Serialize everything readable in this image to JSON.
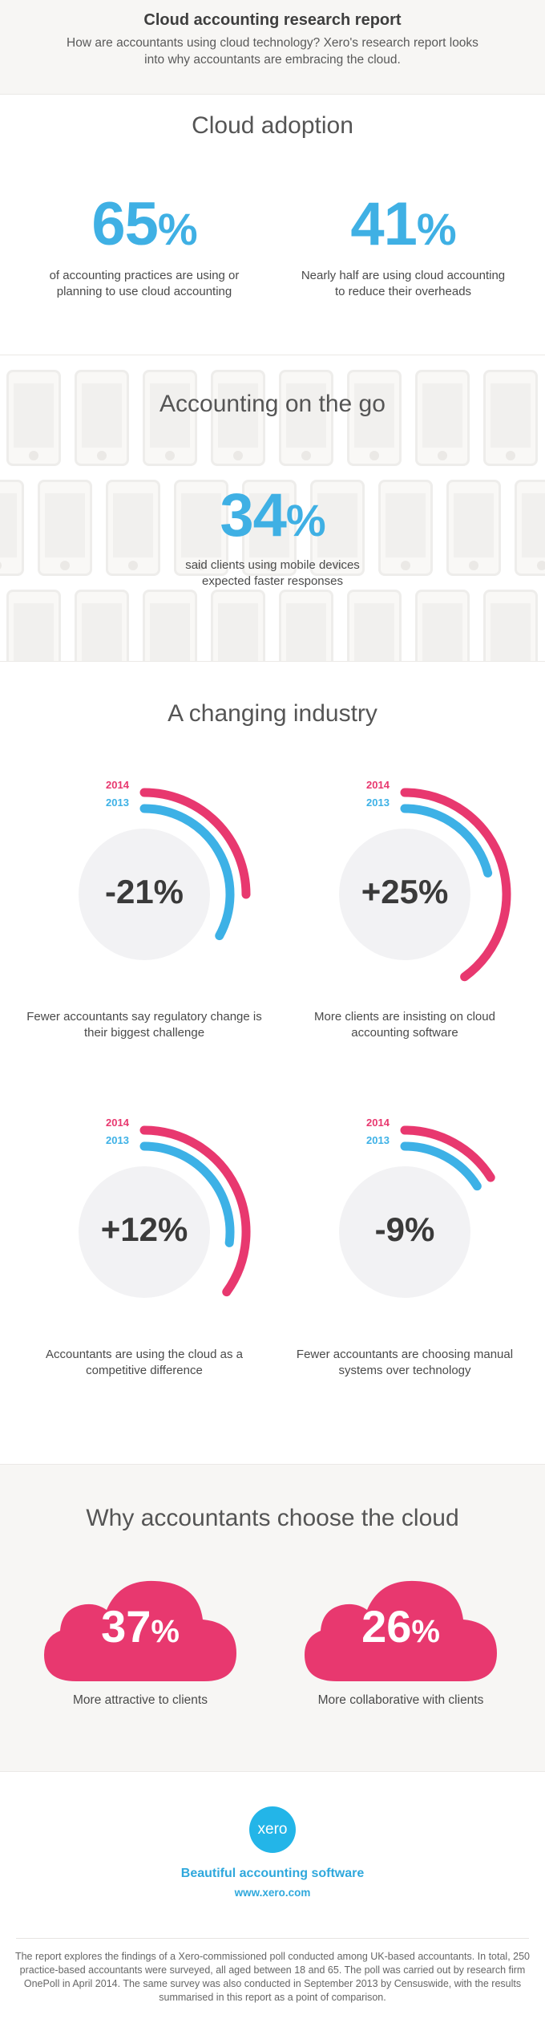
{
  "header": {
    "title": "Cloud accounting research report",
    "subtitle": "How are accountants using cloud technology? Xero's research report looks into why accountants are embracing the cloud."
  },
  "adoption": {
    "title": "Cloud adoption",
    "stats": [
      {
        "number": "65",
        "unit": "%",
        "desc": "of accounting practices are using or planning to use cloud accounting"
      },
      {
        "number": "41",
        "unit": "%",
        "desc": "Nearly half are using cloud accounting to reduce their overheads"
      }
    ]
  },
  "mobile": {
    "title": "Accounting on the go",
    "stat": {
      "number": "34",
      "unit": "%",
      "desc": "said clients using mobile devices expected faster responses"
    }
  },
  "industry": {
    "title": "A changing industry",
    "label_2014": "2014",
    "label_2013": "2013",
    "color_2014": "#e8386f",
    "color_2013": "#3db1e6",
    "items": [
      {
        "value": "-21%",
        "caption": "Fewer accountants say regulatory change is their biggest challenge",
        "arc_2014": 0.25,
        "arc_2013": 0.33
      },
      {
        "value": "+25%",
        "caption": "More clients are insisting on cloud accounting software",
        "arc_2014": 0.4,
        "arc_2013": 0.21
      },
      {
        "value": "+12%",
        "caption": "Accountants are using the cloud as a competitive difference",
        "arc_2014": 0.35,
        "arc_2013": 0.27
      },
      {
        "value": "-9%",
        "caption": "Fewer accountants are choosing manual systems over technology",
        "arc_2014": 0.16,
        "arc_2013": 0.16
      }
    ]
  },
  "why": {
    "title": "Why accountants choose the cloud",
    "cloud_color": "#e8386f",
    "items": [
      {
        "number": "37",
        "unit": "%",
        "caption": "More attractive to clients"
      },
      {
        "number": "26",
        "unit": "%",
        "caption": "More collaborative with clients"
      }
    ]
  },
  "footer": {
    "logo_text": "xero",
    "tagline": "Beautiful accounting software",
    "url": "www.xero.com",
    "fine_print": "The report explores the findings of a Xero-commissioned poll conducted among UK-based accountants. In total, 250 practice-based accountants were surveyed, all aged between 18 and 65. The poll was carried out by research firm OnePoll in April 2014. The same survey was also conducted in September 2013 by Censuswide, with the results summarised in this report as a point of comparison."
  }
}
